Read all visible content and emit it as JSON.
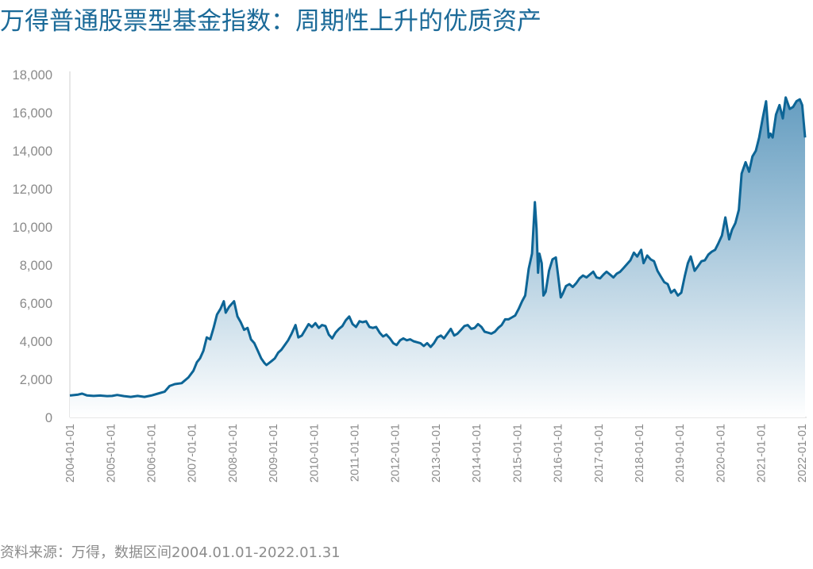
{
  "title": "万得普通股票型基金指数：周期性上升的优质资产",
  "source": "资料来源：万得，数据区间2004.01.01-2022.01.31",
  "colors": {
    "title": "#1b6a98",
    "line": "#0d6596",
    "fill_top": "#5d98bd",
    "fill_bottom": "#ffffff",
    "axis": "#cfcfcf",
    "tick_text": "#8a8a8a"
  },
  "chart_data": {
    "type": "area",
    "title": "万得普通股票型基金指数：周期性上升的优质资产",
    "xlabel": "",
    "ylabel": "",
    "ylim": [
      0,
      18000
    ],
    "yticks": [
      0,
      2000,
      4000,
      6000,
      8000,
      10000,
      12000,
      14000,
      16000,
      18000
    ],
    "ytick_labels": [
      "0",
      "2,000",
      "4,000",
      "6,000",
      "8,000",
      "10,000",
      "12,000",
      "14,000",
      "16,000",
      "18,000"
    ],
    "xlim": [
      "2004-01-01",
      "2022-01-31"
    ],
    "xtick_labels": [
      "2004-01-01",
      "2005-01-01",
      "2006-01-01",
      "2007-01-01",
      "2008-01-01",
      "2009-01-01",
      "2010-01-01",
      "2011-01-01",
      "2012-01-01",
      "2013-01-01",
      "2014-01-01",
      "2015-01-01",
      "2016-01-01",
      "2017-01-01",
      "2018-01-01",
      "2019-01-01",
      "2020-01-01",
      "2021-01-01",
      "2022-01-01"
    ],
    "grid": false,
    "legend": "none",
    "series": [
      {
        "points": [
          [
            "2004-01-01",
            1150
          ],
          [
            "2004-03-15",
            1200
          ],
          [
            "2004-04-20",
            1250
          ],
          [
            "2004-06-01",
            1160
          ],
          [
            "2004-08-01",
            1130
          ],
          [
            "2004-10-01",
            1150
          ],
          [
            "2004-12-01",
            1120
          ],
          [
            "2005-01-15",
            1130
          ],
          [
            "2005-03-01",
            1180
          ],
          [
            "2005-05-01",
            1120
          ],
          [
            "2005-07-01",
            1080
          ],
          [
            "2005-09-01",
            1130
          ],
          [
            "2005-11-01",
            1080
          ],
          [
            "2006-01-01",
            1150
          ],
          [
            "2006-03-01",
            1250
          ],
          [
            "2006-05-01",
            1350
          ],
          [
            "2006-06-15",
            1650
          ],
          [
            "2006-08-01",
            1750
          ],
          [
            "2006-10-01",
            1800
          ],
          [
            "2006-12-01",
            2100
          ],
          [
            "2007-01-15",
            2450
          ],
          [
            "2007-02-15",
            2900
          ],
          [
            "2007-03-15",
            3100
          ],
          [
            "2007-04-15",
            3500
          ],
          [
            "2007-05-15",
            4200
          ],
          [
            "2007-06-15",
            4100
          ],
          [
            "2007-07-15",
            4700
          ],
          [
            "2007-08-15",
            5400
          ],
          [
            "2007-09-15",
            5700
          ],
          [
            "2007-10-15",
            6100
          ],
          [
            "2007-11-01",
            5500
          ],
          [
            "2007-12-01",
            5800
          ],
          [
            "2008-01-15",
            6100
          ],
          [
            "2008-02-15",
            5300
          ],
          [
            "2008-03-15",
            5000
          ],
          [
            "2008-04-15",
            4600
          ],
          [
            "2008-05-15",
            4700
          ],
          [
            "2008-06-15",
            4100
          ],
          [
            "2008-07-15",
            3900
          ],
          [
            "2008-08-15",
            3500
          ],
          [
            "2008-09-15",
            3100
          ],
          [
            "2008-10-15",
            2850
          ],
          [
            "2008-11-01",
            2750
          ],
          [
            "2008-12-15",
            2950
          ],
          [
            "2009-01-15",
            3100
          ],
          [
            "2009-02-15",
            3400
          ],
          [
            "2009-03-15",
            3550
          ],
          [
            "2009-04-15",
            3800
          ],
          [
            "2009-05-15",
            4050
          ],
          [
            "2009-06-15",
            4400
          ],
          [
            "2009-07-20",
            4850
          ],
          [
            "2009-08-15",
            4200
          ],
          [
            "2009-09-15",
            4300
          ],
          [
            "2009-10-15",
            4600
          ],
          [
            "2009-11-15",
            4900
          ],
          [
            "2009-12-15",
            4750
          ],
          [
            "2010-01-15",
            4950
          ],
          [
            "2010-02-15",
            4700
          ],
          [
            "2010-03-15",
            4850
          ],
          [
            "2010-04-15",
            4800
          ],
          [
            "2010-05-15",
            4350
          ],
          [
            "2010-06-15",
            4150
          ],
          [
            "2010-07-15",
            4450
          ],
          [
            "2010-08-15",
            4650
          ],
          [
            "2010-09-15",
            4800
          ],
          [
            "2010-10-15",
            5100
          ],
          [
            "2010-11-15",
            5300
          ],
          [
            "2010-12-15",
            4900
          ],
          [
            "2011-01-15",
            4750
          ],
          [
            "2011-02-15",
            5050
          ],
          [
            "2011-03-15",
            5000
          ],
          [
            "2011-04-15",
            5050
          ],
          [
            "2011-05-15",
            4750
          ],
          [
            "2011-06-15",
            4700
          ],
          [
            "2011-07-15",
            4750
          ],
          [
            "2011-08-15",
            4450
          ],
          [
            "2011-09-15",
            4250
          ],
          [
            "2011-10-15",
            4350
          ],
          [
            "2011-11-15",
            4150
          ],
          [
            "2011-12-15",
            3900
          ],
          [
            "2012-01-15",
            3800
          ],
          [
            "2012-02-15",
            4050
          ],
          [
            "2012-03-15",
            4150
          ],
          [
            "2012-04-15",
            4050
          ],
          [
            "2012-05-15",
            4100
          ],
          [
            "2012-06-15",
            4000
          ],
          [
            "2012-07-15",
            3950
          ],
          [
            "2012-08-15",
            3900
          ],
          [
            "2012-09-15",
            3750
          ],
          [
            "2012-10-15",
            3900
          ],
          [
            "2012-11-15",
            3700
          ],
          [
            "2012-12-15",
            3900
          ],
          [
            "2013-01-15",
            4200
          ],
          [
            "2013-02-15",
            4300
          ],
          [
            "2013-03-15",
            4150
          ],
          [
            "2013-04-15",
            4400
          ],
          [
            "2013-05-15",
            4650
          ],
          [
            "2013-06-15",
            4300
          ],
          [
            "2013-07-15",
            4400
          ],
          [
            "2013-08-15",
            4600
          ],
          [
            "2013-09-15",
            4800
          ],
          [
            "2013-10-15",
            4850
          ],
          [
            "2013-11-15",
            4650
          ],
          [
            "2013-12-15",
            4700
          ],
          [
            "2014-01-15",
            4900
          ],
          [
            "2014-02-15",
            4750
          ],
          [
            "2014-03-15",
            4500
          ],
          [
            "2014-04-15",
            4450
          ],
          [
            "2014-05-15",
            4400
          ],
          [
            "2014-06-15",
            4500
          ],
          [
            "2014-07-15",
            4700
          ],
          [
            "2014-08-15",
            4850
          ],
          [
            "2014-09-15",
            5150
          ],
          [
            "2014-10-15",
            5150
          ],
          [
            "2014-11-15",
            5250
          ],
          [
            "2014-12-15",
            5350
          ],
          [
            "2015-01-15",
            5700
          ],
          [
            "2015-02-15",
            6100
          ],
          [
            "2015-03-15",
            6400
          ],
          [
            "2015-04-15",
            7800
          ],
          [
            "2015-05-15",
            8600
          ],
          [
            "2015-06-10",
            11300
          ],
          [
            "2015-06-25",
            9900
          ],
          [
            "2015-07-08",
            7600
          ],
          [
            "2015-07-20",
            8600
          ],
          [
            "2015-08-10",
            8100
          ],
          [
            "2015-08-26",
            6400
          ],
          [
            "2015-09-15",
            6600
          ],
          [
            "2015-10-15",
            7700
          ],
          [
            "2015-11-15",
            8300
          ],
          [
            "2015-12-15",
            8400
          ],
          [
            "2016-01-10",
            7200
          ],
          [
            "2016-01-28",
            6300
          ],
          [
            "2016-02-15",
            6500
          ],
          [
            "2016-03-15",
            6900
          ],
          [
            "2016-04-15",
            7000
          ],
          [
            "2016-05-15",
            6850
          ],
          [
            "2016-06-15",
            7050
          ],
          [
            "2016-07-15",
            7300
          ],
          [
            "2016-08-15",
            7450
          ],
          [
            "2016-09-15",
            7350
          ],
          [
            "2016-10-15",
            7500
          ],
          [
            "2016-11-15",
            7650
          ],
          [
            "2016-12-15",
            7350
          ],
          [
            "2017-01-15",
            7300
          ],
          [
            "2017-02-15",
            7500
          ],
          [
            "2017-03-15",
            7650
          ],
          [
            "2017-04-15",
            7500
          ],
          [
            "2017-05-15",
            7350
          ],
          [
            "2017-06-15",
            7550
          ],
          [
            "2017-07-15",
            7650
          ],
          [
            "2017-08-15",
            7850
          ],
          [
            "2017-09-15",
            8050
          ],
          [
            "2017-10-15",
            8250
          ],
          [
            "2017-11-15",
            8650
          ],
          [
            "2017-12-15",
            8450
          ],
          [
            "2018-01-20",
            8800
          ],
          [
            "2018-02-10",
            8100
          ],
          [
            "2018-03-15",
            8500
          ],
          [
            "2018-04-15",
            8300
          ],
          [
            "2018-05-15",
            8200
          ],
          [
            "2018-06-15",
            7700
          ],
          [
            "2018-07-15",
            7400
          ],
          [
            "2018-08-15",
            7100
          ],
          [
            "2018-09-15",
            7000
          ],
          [
            "2018-10-15",
            6550
          ],
          [
            "2018-11-15",
            6700
          ],
          [
            "2018-12-15",
            6400
          ],
          [
            "2019-01-15",
            6550
          ],
          [
            "2019-02-15",
            7400
          ],
          [
            "2019-03-15",
            8100
          ],
          [
            "2019-04-10",
            8450
          ],
          [
            "2019-05-15",
            7700
          ],
          [
            "2019-06-15",
            7950
          ],
          [
            "2019-07-15",
            8200
          ],
          [
            "2019-08-15",
            8250
          ],
          [
            "2019-09-15",
            8550
          ],
          [
            "2019-10-15",
            8700
          ],
          [
            "2019-11-15",
            8800
          ],
          [
            "2019-12-15",
            9150
          ],
          [
            "2020-01-15",
            9550
          ],
          [
            "2020-02-15",
            10500
          ],
          [
            "2020-03-20",
            9350
          ],
          [
            "2020-04-15",
            9850
          ],
          [
            "2020-05-15",
            10200
          ],
          [
            "2020-06-15",
            10900
          ],
          [
            "2020-07-10",
            12800
          ],
          [
            "2020-08-15",
            13400
          ],
          [
            "2020-09-15",
            12900
          ],
          [
            "2020-10-15",
            13700
          ],
          [
            "2020-11-15",
            14000
          ],
          [
            "2020-12-15",
            14700
          ],
          [
            "2021-01-15",
            15700
          ],
          [
            "2021-02-15",
            16600
          ],
          [
            "2021-03-10",
            14700
          ],
          [
            "2021-03-25",
            14900
          ],
          [
            "2021-04-15",
            14700
          ],
          [
            "2021-05-15",
            15900
          ],
          [
            "2021-06-15",
            16400
          ],
          [
            "2021-07-15",
            15700
          ],
          [
            "2021-08-10",
            16800
          ],
          [
            "2021-09-15",
            16200
          ],
          [
            "2021-10-15",
            16300
          ],
          [
            "2021-11-15",
            16600
          ],
          [
            "2021-12-15",
            16700
          ],
          [
            "2022-01-05",
            16400
          ],
          [
            "2022-01-31",
            14700
          ]
        ]
      }
    ]
  }
}
